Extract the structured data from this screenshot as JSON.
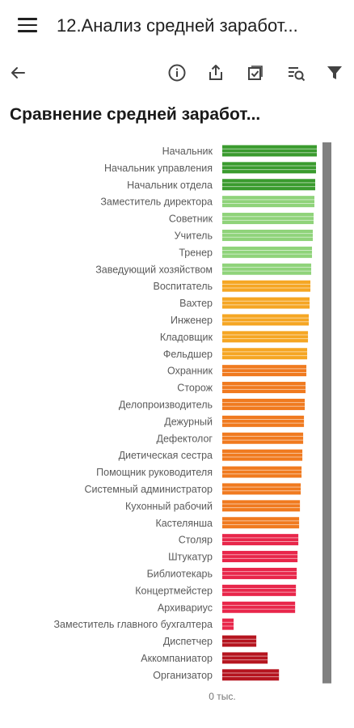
{
  "app": {
    "title": "12.Анализ средней заработ..."
  },
  "toolbar": {
    "icons": [
      "back-arrow-icon",
      "info-icon",
      "share-icon",
      "select-icon",
      "search-filter-icon",
      "filter-icon"
    ]
  },
  "colors": {
    "green_dark": "#3a9b2e",
    "green_light": "#8fd37a",
    "orange_light": "#f5a623",
    "orange": "#f07a1f",
    "red": "#e8264a",
    "dark_red": "#b5141e",
    "scrollbar": "#808080"
  },
  "chart_data": {
    "type": "bar",
    "orientation": "horizontal",
    "title": "Сравнение средней заработ...",
    "x_tick_label": "0 тыс.",
    "categories": [
      "Начальник",
      "Начальник управления",
      "Начальник отдела",
      "Заместитель директора",
      "Советник",
      "Учитель",
      "Тренер",
      "Заведующий хозяйством",
      "Воспитатель",
      "Вахтер",
      "Инженер",
      "Кладовщик",
      "Фельдшер",
      "Охранник",
      "Сторож",
      "Делопроизводитель",
      "Дежурный",
      "Дефектолог",
      "Диетическая сестра",
      "Помощник руководителя",
      "Системный администратор",
      "Кухонный рабочий",
      "Кастелянша",
      "Столяр",
      "Штукатур",
      "Библиотекарь",
      "Концертмейстер",
      "Архивариус",
      "Заместитель главного бухгалтера",
      "Диспетчер",
      "Аккомпаниатор",
      "Организатор"
    ]
  }
}
